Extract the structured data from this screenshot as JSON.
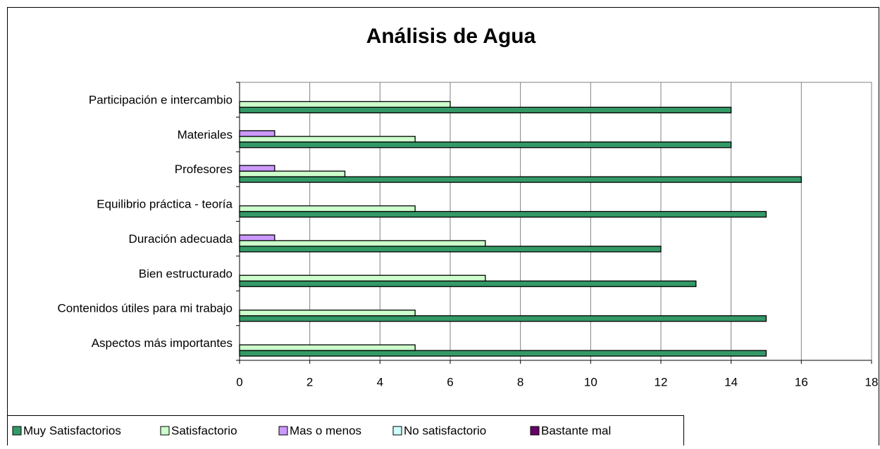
{
  "chart_data": {
    "type": "bar",
    "orientation": "horizontal",
    "title": "Análisis de Agua",
    "categories": [
      "Aspectos más importantes",
      "Contenidos útiles para mi trabajo",
      "Bien estructurado",
      "Duración adecuada",
      "Equilibrio práctica - teoría",
      "Profesores",
      "Materiales",
      "Participación e intercambio"
    ],
    "series": [
      {
        "name": "Muy Satisfactorios",
        "color": "#339966",
        "values": [
          15,
          15,
          13,
          12,
          15,
          16,
          14,
          14
        ]
      },
      {
        "name": "Satisfactorio",
        "color": "#ccffcc",
        "values": [
          5,
          5,
          7,
          7,
          5,
          3,
          5,
          6
        ]
      },
      {
        "name": "Mas o menos",
        "color": "#cc99ff",
        "values": [
          0,
          0,
          0,
          1,
          0,
          1,
          1,
          0
        ]
      },
      {
        "name": "No satisfactorio",
        "color": "#ccffff",
        "values": [
          0,
          0,
          0,
          0,
          0,
          0,
          0,
          0
        ]
      },
      {
        "name": "Bastante mal",
        "color": "#660066",
        "values": [
          0,
          0,
          0,
          0,
          0,
          0,
          0,
          0
        ]
      }
    ],
    "xlim": [
      0,
      18
    ],
    "xticks": [
      0,
      2,
      4,
      6,
      8,
      10,
      12,
      14,
      16,
      18
    ],
    "grid": true,
    "legend": "bottom"
  }
}
